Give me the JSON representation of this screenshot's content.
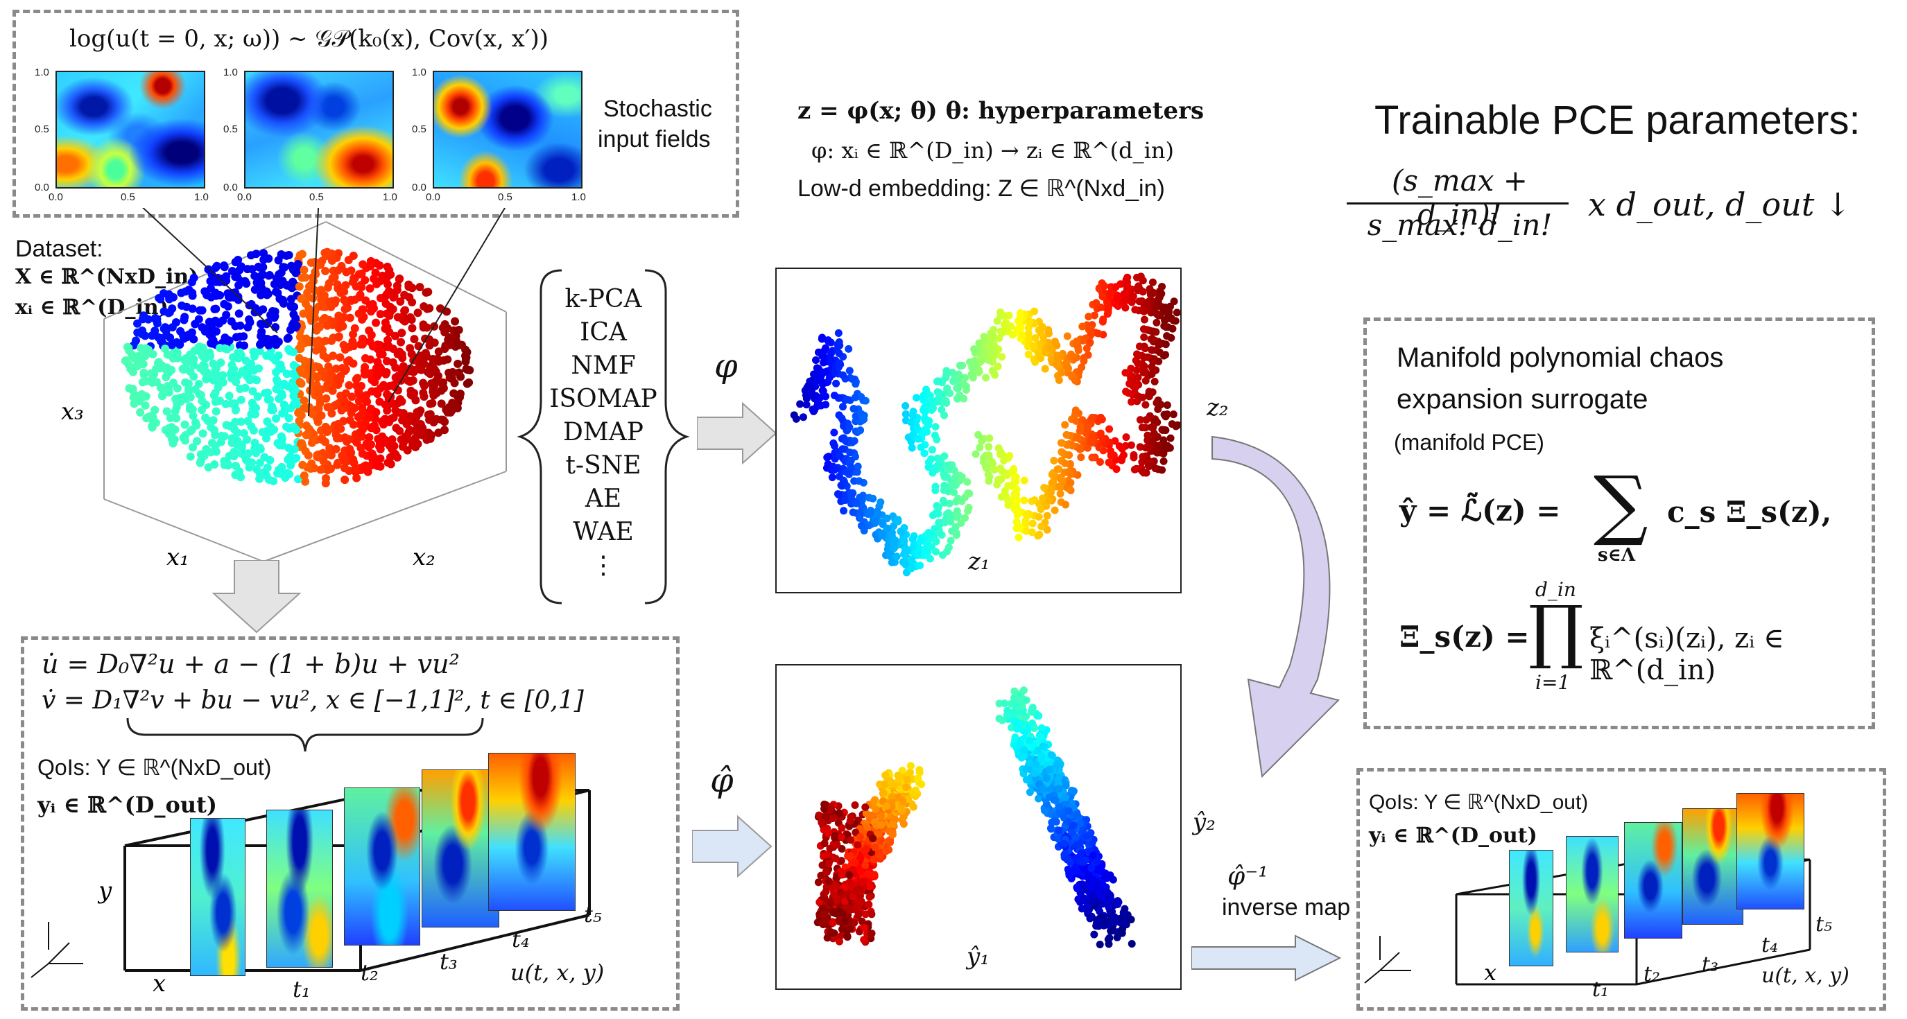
{
  "top_box": {
    "title": "log(u(t = 0, x; ω)) ~ 𝒢𝒫(k₀(x), Cov(x, x′))",
    "ticks_y": [
      "1.0",
      "0.5",
      "0.0"
    ],
    "ticks_x": [
      "0.0",
      "0.5",
      "1.0"
    ],
    "side_label_line1": "Stochastic",
    "side_label_line2": "input fields"
  },
  "dataset": {
    "label": "Dataset:",
    "X": "X ∈ ℝ^(NxD_in)",
    "xi": "xᵢ ∈ ℝ^(D_in)",
    "axis_x1": "x₁",
    "axis_x2": "x₂",
    "axis_x3": "x₃"
  },
  "embedding": {
    "line1": "z = φ(x; θ)   θ: hyperparameters",
    "line2": "φ: xᵢ ∈ ℝ^(D_in) → zᵢ ∈ ℝ^(d_in)",
    "line3": "Low-d embedding: Z ∈ ℝ^(Nxd_in)"
  },
  "methods": [
    "k-PCA",
    "ICA",
    "NMF",
    "ISOMAP",
    "DMAP",
    "t-SNE",
    "AE",
    "WAE",
    "⋮"
  ],
  "arrows": {
    "phi": "φ",
    "phi_hat": "φ̂",
    "inverse_symbol": "φ̂⁻¹",
    "inverse_text": "inverse map"
  },
  "latent_plot": {
    "xlabel": "z₁",
    "ylabel": "z₂"
  },
  "output_plot": {
    "xlabel": "ŷ₁",
    "ylabel": "ŷ₂"
  },
  "pce_params": {
    "title": "Trainable PCE parameters:",
    "numerator": "(s_max + d_in)!",
    "denominator": "s_max! d_in!",
    "times": "x d_out,  d_out ↓"
  },
  "manifold_box": {
    "line1": "Manifold polynomial chaos",
    "line2": "expansion surrogate",
    "line3": "(manifold PCE)",
    "eq1_lhs": "ŷ = ℒ̃(z) =",
    "eq1_sum_index": "s∈Λ",
    "eq1_rhs": "c_s Ξ_s(z),",
    "eq2_lhs": "Ξ_s(z) =",
    "eq2_prod_top": "d_in",
    "eq2_prod_bottom": "i=1",
    "eq2_rhs": "ξᵢ^(sᵢ)(zᵢ),  zᵢ ∈ ℝ^(d_in)"
  },
  "pde_box": {
    "eq1": "u̇ = D₀∇²u + a − (1 + b)u + vu²",
    "eq2": "v̇ = D₁∇²v + bu − vu²,   x ∈ [−1,1]², t ∈ [0,1]",
    "qoi": "QoIs: Y ∈ ℝ^(NxD_out)",
    "yi": "yᵢ ∈ ℝ^(D_out)",
    "axis_y": "y",
    "axis_x": "x",
    "times": [
      "t₁",
      "t₂",
      "t₃",
      "t₄",
      "t₅"
    ],
    "u_label": "u(t, x, y)"
  },
  "out_box": {
    "qoi": "QoIs: Y ∈ ℝ^(NxD_out)",
    "yi": "yᵢ ∈ ℝ^(D_out)",
    "axis_x": "x",
    "times": [
      "t₁",
      "t₂",
      "t₃",
      "t₄",
      "t₅"
    ],
    "u_label": "u(t, x, y)"
  },
  "colors": {
    "dash": "#8a8a8a",
    "arrow_fill": "#e4e4e4",
    "arrow_blue": "#dbe7f6",
    "curve_arrow": "#d7d0ef"
  }
}
